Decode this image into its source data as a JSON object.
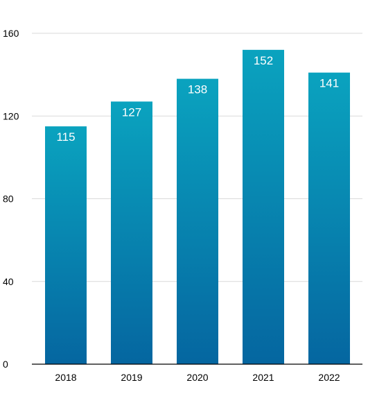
{
  "chart_data": {
    "type": "bar",
    "title": "",
    "xlabel": "",
    "ylabel": "",
    "categories": [
      "2018",
      "2019",
      "2020",
      "2021",
      "2022"
    ],
    "values": [
      115,
      127,
      138,
      152,
      141
    ],
    "ylim": [
      0,
      160
    ],
    "yticks": [
      0,
      40,
      80,
      120,
      160
    ],
    "grid": true,
    "legend": "none",
    "data_labels": true,
    "colors": {
      "bar_top": "#0aa3bf",
      "bar_bottom": "#0566a0",
      "grid": "#d9d9d9",
      "axis": "#000000",
      "label": "#ffffff"
    }
  }
}
